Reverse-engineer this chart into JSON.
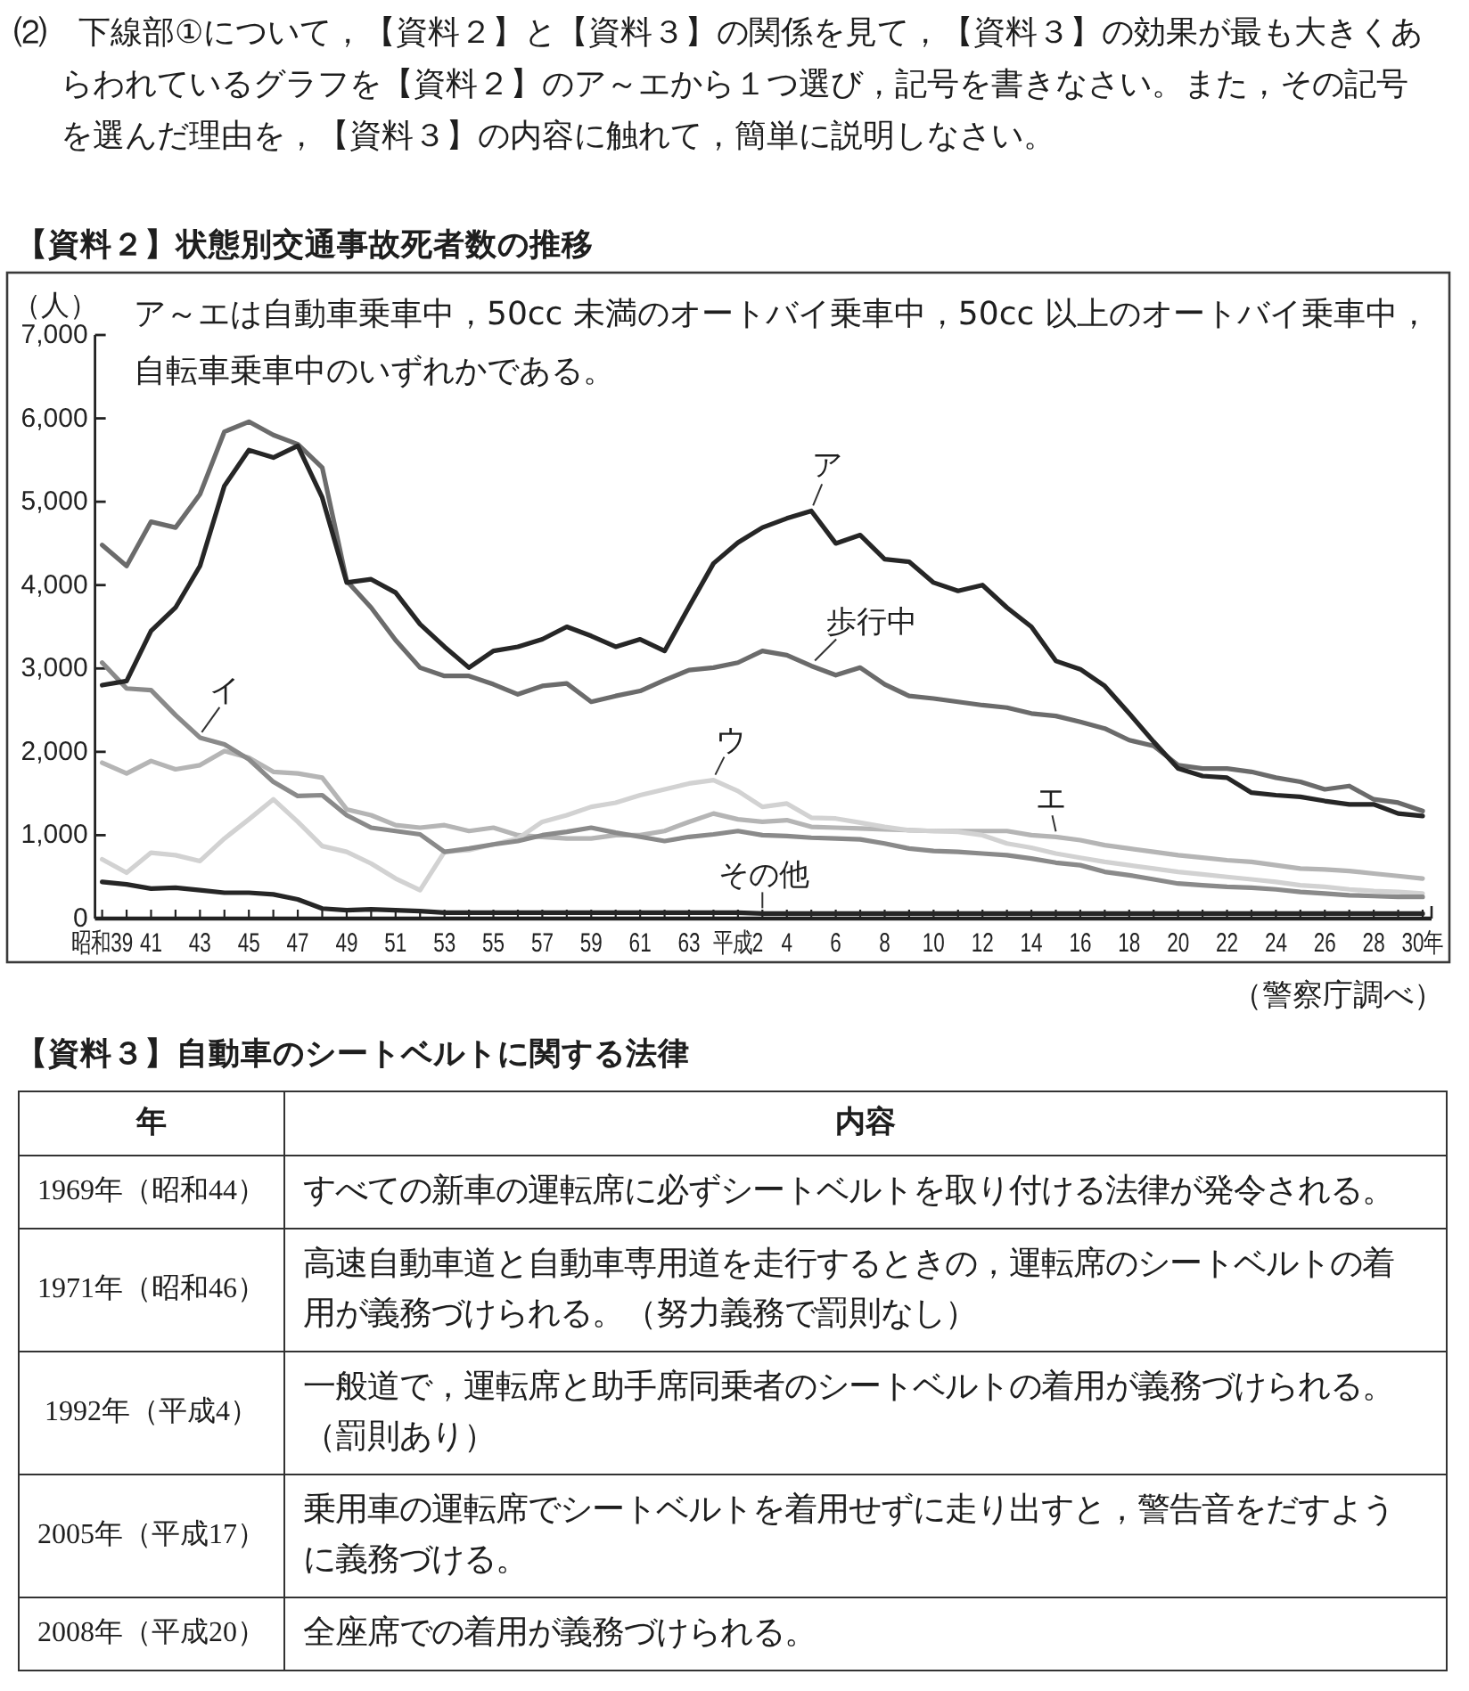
{
  "chart_data": [
    {
      "type": "line",
      "title": "【資料２】状態別交通事故死者数の推移",
      "ylabel": "（人）",
      "categories": [
        "昭和39",
        null,
        "41",
        null,
        "43",
        null,
        "45",
        null,
        "47",
        null,
        "49",
        null,
        "51",
        null,
        "53",
        null,
        "55",
        null,
        "57",
        null,
        "59",
        null,
        "61",
        null,
        "63",
        null,
        "平成2",
        null,
        "4",
        null,
        "6",
        null,
        "8",
        null,
        "10",
        null,
        "12",
        null,
        "14",
        null,
        "16",
        null,
        "18",
        null,
        "20",
        null,
        "22",
        null,
        "24",
        null,
        "26",
        null,
        "28",
        null,
        "30年"
      ],
      "ylim": [
        0,
        7000
      ],
      "yticks": [
        0,
        {
          "value": 1000,
          "label": "1,000"
        },
        {
          "value": 2000,
          "label": "2,000"
        },
        {
          "value": 3000,
          "label": "3,000"
        },
        {
          "value": 4000,
          "label": "4,000"
        },
        {
          "value": 5000,
          "label": "5,000"
        },
        {
          "value": 6000,
          "label": "6,000"
        },
        {
          "value": 7000,
          "label": "7,000"
        }
      ],
      "series": [
        {
          "name": "ア",
          "color": "#262626",
          "values": [
            2800,
            2850,
            3450,
            3730,
            4230,
            5190,
            5620,
            5530,
            5670,
            5050,
            4030,
            4070,
            3910,
            3530,
            3260,
            3010,
            3210,
            3260,
            3350,
            3500,
            3390,
            3260,
            3350,
            3210,
            3740,
            4260,
            4510,
            4690,
            4800,
            4890,
            4500,
            4600,
            4310,
            4280,
            4030,
            3930,
            4000,
            3730,
            3500,
            3090,
            2990,
            2790,
            2460,
            2120,
            1800,
            1710,
            1690,
            1510,
            1480,
            1460,
            1410,
            1370,
            1370,
            1260,
            1230
          ]
        },
        {
          "name": "イ",
          "color": "#8a8a8a",
          "values": [
            3070,
            2760,
            2740,
            2440,
            2170,
            2090,
            1910,
            1640,
            1470,
            1480,
            1240,
            1090,
            1050,
            1010,
            800,
            840,
            890,
            930,
            1000,
            1040,
            1090,
            1030,
            980,
            930,
            980,
            1010,
            1050,
            1000,
            990,
            970,
            960,
            950,
            900,
            840,
            810,
            800,
            780,
            760,
            720,
            670,
            640,
            560,
            520,
            470,
            420,
            400,
            380,
            370,
            350,
            320,
            300,
            280,
            270,
            260,
            260
          ]
        },
        {
          "name": "ウ",
          "color": "#d2d2d2",
          "values": [
            710,
            550,
            790,
            760,
            690,
            960,
            1190,
            1430,
            1160,
            870,
            800,
            660,
            480,
            340,
            800,
            820,
            890,
            960,
            1160,
            1240,
            1340,
            1390,
            1480,
            1550,
            1620,
            1660,
            1530,
            1340,
            1380,
            1210,
            1200,
            1150,
            1100,
            1060,
            1050,
            1040,
            1000,
            900,
            850,
            780,
            730,
            680,
            640,
            600,
            560,
            530,
            500,
            470,
            440,
            400,
            380,
            350,
            330,
            320,
            300
          ]
        },
        {
          "name": "エ",
          "color": "#b5b5b5",
          "values": [
            1870,
            1740,
            1890,
            1790,
            1840,
            2010,
            1930,
            1760,
            1740,
            1690,
            1310,
            1240,
            1120,
            1090,
            1120,
            1050,
            1090,
            1000,
            980,
            960,
            960,
            1000,
            1000,
            1050,
            1160,
            1260,
            1190,
            1160,
            1180,
            1100,
            1090,
            1080,
            1070,
            1060,
            1050,
            1050,
            1050,
            1050,
            1000,
            980,
            940,
            880,
            840,
            800,
            760,
            730,
            700,
            680,
            640,
            600,
            590,
            570,
            540,
            510,
            480
          ]
        },
        {
          "name": "歩行中",
          "color": "#6b6b6b",
          "values": [
            4480,
            4230,
            4760,
            4690,
            5090,
            5840,
            5960,
            5800,
            5690,
            5410,
            4050,
            3730,
            3340,
            3010,
            2910,
            2910,
            2810,
            2690,
            2790,
            2820,
            2600,
            2670,
            2730,
            2860,
            2980,
            3010,
            3070,
            3210,
            3160,
            3030,
            2920,
            3010,
            2810,
            2670,
            2640,
            2600,
            2560,
            2530,
            2460,
            2430,
            2360,
            2280,
            2140,
            2070,
            1840,
            1800,
            1800,
            1760,
            1690,
            1640,
            1550,
            1590,
            1430,
            1390,
            1290
          ]
        },
        {
          "name": "その他",
          "color": "#262626",
          "values": [
            440,
            410,
            360,
            370,
            340,
            310,
            310,
            290,
            230,
            120,
            100,
            110,
            100,
            90,
            70,
            70,
            70,
            70,
            70,
            70,
            70,
            70,
            70,
            70,
            70,
            70,
            70,
            60,
            60,
            60,
            60,
            60,
            60,
            60,
            60,
            60,
            60,
            60,
            60,
            60,
            60,
            60,
            60,
            60,
            60,
            60,
            60,
            60,
            60,
            60,
            60,
            60,
            60,
            60,
            60
          ]
        }
      ],
      "annotations": [
        "⑵　下線部①について，【資料２】と【資料３】の関係を見て，【資料３】の効果が最も大きくあらわれているグラフを【資料２】のア～エから１つ選び，記号を書きなさい。また，その記号を選んだ理由を，【資料３】の内容に触れて，簡単に説明しなさい。",
        "ア～エは自動車乗車中，50cc 未満のオートバイ乗車中，50cc 以上のオートバイ乗車中，自転車乗車中のいずれかである。",
        "（警察庁調べ）"
      ]
    },
    {
      "type": "other",
      "title": "【資料３】自動車のシートベルトに関する法律",
      "annotations": [
        "年",
        "内容",
        "1969年（昭和44）",
        "すべての新車の運転席に必ずシートベルトを取り付ける法律が発令される。",
        "1971年（昭和46）",
        "高速自動車道と自動車専用道を走行するときの，運転席のシートベルトの着用が義務づけられる。（努力義務で罰則なし）",
        "1992年（平成4）",
        "一般道で，運転席と助手席同乗者のシートベルトの着用が義務づけられる。（罰則あり）",
        "2005年（平成17）",
        "乗用車の運転席でシートベルトを着用せずに走り出すと，警告音をだすように義務づける。",
        "2008年（平成20）",
        "全座席での着用が義務づけられる。"
      ]
    }
  ]
}
